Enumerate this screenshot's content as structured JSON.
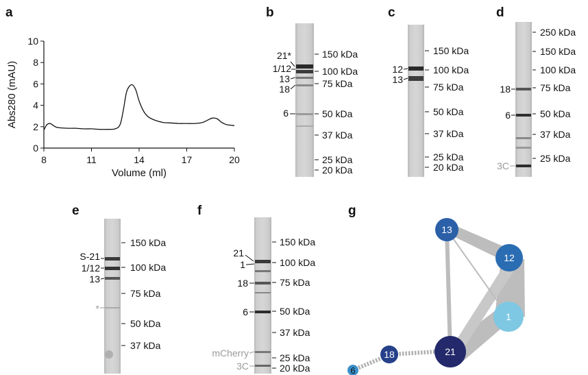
{
  "panels": {
    "a": "a",
    "b": "b",
    "c": "c",
    "d": "d",
    "e": "e",
    "f": "f",
    "g": "g"
  },
  "chart_data": {
    "type": "line",
    "xlabel": "Volume (ml)",
    "ylabel": "Abs280 (mAU)",
    "xlim": [
      8,
      20
    ],
    "ylim": [
      0,
      10
    ],
    "xticks": [
      "8",
      "11",
      "14",
      "17",
      "20"
    ],
    "yticks": [
      "0",
      "2",
      "4",
      "6",
      "8",
      "10"
    ],
    "x": [
      8.0,
      8.2,
      8.4,
      8.6,
      8.8,
      9.0,
      9.5,
      10,
      10.5,
      11,
      11.5,
      12,
      12.5,
      12.8,
      13.0,
      13.2,
      13.4,
      13.6,
      13.8,
      14.0,
      14.3,
      14.6,
      15.0,
      15.5,
      16.0,
      16.5,
      17.0,
      17.5,
      18.0,
      18.3,
      18.6,
      18.9,
      19.2,
      19.5,
      20.0
    ],
    "y": [
      1.7,
      2.2,
      2.3,
      2.1,
      1.95,
      1.9,
      1.85,
      1.85,
      1.8,
      1.8,
      1.75,
      1.75,
      1.8,
      2.2,
      3.5,
      5.2,
      5.8,
      5.9,
      5.4,
      4.4,
      3.4,
      2.9,
      2.6,
      2.4,
      2.35,
      2.3,
      2.3,
      2.3,
      2.4,
      2.6,
      2.8,
      2.75,
      2.4,
      2.2,
      2.1
    ]
  },
  "gels": {
    "b": {
      "mw": [
        "150 kDa",
        "100 kDa",
        "75 kDa",
        "50 kDa",
        "37 kDa",
        "25 kDa",
        "20 kDa"
      ],
      "bands": [
        "21*",
        "1/12",
        "13",
        "18",
        "6"
      ]
    },
    "c": {
      "mw": [
        "150 kDa",
        "100 kDa",
        "75 kDa",
        "50 kDa",
        "37 kDa",
        "25 kDa",
        "20 kDa"
      ],
      "bands": [
        "12",
        "13"
      ]
    },
    "d": {
      "mw": [
        "250 kDa",
        "150 kDa",
        "100 kDa",
        "75 kDa",
        "50 kDa",
        "37 kDa",
        "25 kDa"
      ],
      "bands": [
        "18",
        "6",
        "3C"
      ]
    },
    "e": {
      "mw": [
        "150 kDa",
        "100 kDa",
        "75 kDa",
        "50 kDa",
        "37 kDa"
      ],
      "bands": [
        "S-21",
        "1/12",
        "13",
        "*"
      ]
    },
    "f": {
      "mw": [
        "150 kDa",
        "100 kDa",
        "75 kDa",
        "50 kDa",
        "37 kDa",
        "25 kDa",
        "20 kDa"
      ],
      "bands": [
        "21",
        "1",
        "18",
        "6",
        "mCherry",
        "3C"
      ]
    }
  },
  "network": {
    "nodes": [
      {
        "label": "13",
        "color": "#2b5fa8"
      },
      {
        "label": "12",
        "color": "#2a6db3"
      },
      {
        "label": "1",
        "color": "#7ec8e3"
      },
      {
        "label": "21",
        "color": "#23296a"
      },
      {
        "label": "18",
        "color": "#26418a"
      },
      {
        "label": "6",
        "color": "#3a8fc9"
      }
    ]
  }
}
